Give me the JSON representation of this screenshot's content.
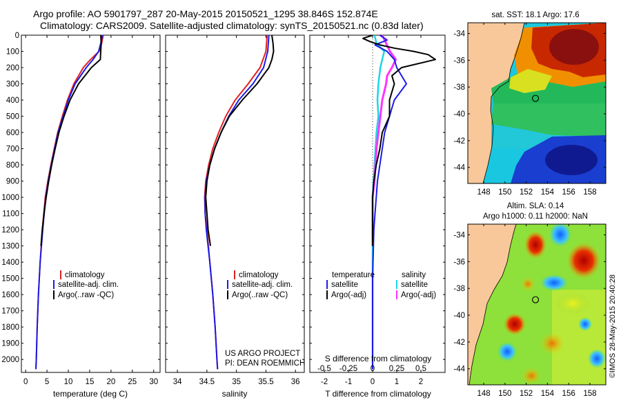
{
  "header": {
    "title_line1": "Argo profile: AO 5901797_287 20-May-2015 20150521_1295 38.846S 152.874E",
    "title_line2": "Climatology: CARS2009. Satellite-adjusted climatology: synTS_20150521.nc (0.83d later)"
  },
  "colors": {
    "climatology": "#e02020",
    "satellite": "#1a1ae6",
    "argo": "#000000",
    "satellite_diff": "#19d6e6",
    "argo_diff": "#ff33ff",
    "land": "#f8c89a"
  },
  "chart_data": [
    {
      "type": "line",
      "title": "",
      "xlabel": "temperature (deg C)",
      "ylabel": "",
      "xlim": [
        -1,
        31.5
      ],
      "ylim": [
        2080,
        0
      ],
      "xticks": [
        "0",
        "5",
        "10",
        "15",
        "20",
        "25",
        "30"
      ],
      "yticks": [
        "0",
        "100",
        "200",
        "300",
        "400",
        "500",
        "600",
        "700",
        "800",
        "900",
        "1000",
        "1100",
        "1200",
        "1300",
        "1400",
        "1500",
        "1600",
        "1700",
        "1800",
        "1900",
        "2000"
      ],
      "legend": [
        "climatology",
        "satellite-adj. clim.",
        "Argo(..raw -QC)"
      ],
      "series": [
        {
          "name": "climatology",
          "depth": [
            0,
            50,
            100,
            150,
            200,
            300,
            400,
            500,
            600,
            700,
            800,
            900,
            1000,
            1200,
            1400,
            1600,
            1800,
            2000,
            2060
          ],
          "values": [
            18.2,
            17.8,
            17.2,
            15.2,
            13.5,
            11.3,
            9.8,
            8.6,
            7.5,
            6.7,
            5.9,
            5.2,
            4.6,
            3.9,
            3.4,
            3.0,
            2.7,
            2.5,
            2.4
          ]
        },
        {
          "name": "satellite-adj. clim.",
          "depth": [
            0,
            50,
            100,
            150,
            200,
            300,
            400,
            500,
            600,
            700,
            800,
            900,
            1000,
            1200,
            1400,
            1600,
            1800,
            2000,
            2060
          ],
          "values": [
            18.0,
            17.6,
            17.1,
            15.8,
            14.2,
            11.6,
            10.0,
            8.8,
            7.6,
            6.8,
            6.0,
            5.3,
            4.7,
            4.0,
            3.4,
            3.0,
            2.7,
            2.5,
            2.4
          ]
        },
        {
          "name": "Argo(..raw -QC)",
          "depth": [
            0,
            50,
            100,
            150,
            200,
            300,
            400,
            500,
            600,
            700,
            800,
            900,
            1000,
            1100,
            1200,
            1300
          ],
          "values": [
            17.6,
            17.7,
            17.6,
            17.5,
            15.4,
            12.4,
            10.4,
            9.0,
            7.8,
            6.9,
            6.1,
            5.4,
            4.8,
            4.3,
            3.9,
            3.6
          ]
        }
      ]
    },
    {
      "type": "line",
      "title": "",
      "xlabel": "salinity",
      "ylabel": "",
      "xlim": [
        33.8,
        36.15
      ],
      "ylim": [
        2080,
        0
      ],
      "xticks": [
        "34",
        "34.5",
        "35",
        "35.5",
        "36"
      ],
      "legend": [
        "climatology",
        "satellite-adj. clim.",
        "Argo(..raw -QC)"
      ],
      "series": [
        {
          "name": "climatology",
          "depth": [
            0,
            100,
            200,
            300,
            400,
            500,
            600,
            700,
            800,
            900,
            1000,
            1100,
            1200,
            1400,
            1600,
            1800,
            2000,
            2060
          ],
          "values": [
            35.52,
            35.5,
            35.4,
            35.2,
            34.98,
            34.82,
            34.7,
            34.6,
            34.53,
            34.48,
            34.46,
            34.47,
            34.5,
            34.55,
            34.6,
            34.64,
            34.67,
            34.68
          ]
        },
        {
          "name": "satellite-adj. clim.",
          "depth": [
            0,
            100,
            200,
            300,
            400,
            500,
            600,
            700,
            800,
            900,
            1000,
            1100,
            1200,
            1400,
            1600,
            1800,
            2000,
            2060
          ],
          "values": [
            35.55,
            35.53,
            35.46,
            35.28,
            35.04,
            34.87,
            34.74,
            34.63,
            34.55,
            34.49,
            34.47,
            34.47,
            34.49,
            34.55,
            34.6,
            34.64,
            34.67,
            34.68
          ]
        },
        {
          "name": "Argo(..raw -QC)",
          "depth": [
            0,
            50,
            100,
            150,
            200,
            300,
            400,
            500,
            600,
            700,
            800,
            900,
            1000,
            1100,
            1200,
            1300
          ],
          "values": [
            35.6,
            35.62,
            35.63,
            35.6,
            35.55,
            35.35,
            35.1,
            34.88,
            34.74,
            34.63,
            34.55,
            34.5,
            34.48,
            34.5,
            34.52,
            34.56
          ]
        }
      ]
    },
    {
      "type": "line",
      "title": "",
      "xlabel": "T difference from climatology",
      "xlabel2": "S difference from climatology",
      "ylabel": "",
      "xlim": [
        -2.6,
        3.0
      ],
      "ylim": [
        2080,
        0
      ],
      "xticks": [
        "-2",
        "-1",
        "0",
        "1",
        "2"
      ],
      "xticks_top": [
        "-0.5",
        "-0.25",
        "0",
        "0.25",
        "0.5"
      ],
      "legend_headers": [
        "temperature",
        "salinity"
      ],
      "legend": [
        "satellite",
        "Argo(-adj)",
        "satellite",
        "Argo(-adj)"
      ],
      "series": [
        {
          "name": "temperature satellite",
          "depth": [
            0,
            30,
            60,
            100,
            150,
            200,
            300,
            400,
            500,
            600,
            700,
            800,
            900,
            1000,
            1100,
            1200,
            1500,
            2060
          ],
          "values": [
            0.3,
            0.6,
            0.1,
            0.6,
            0.9,
            1.0,
            1.4,
            0.9,
            0.7,
            0.5,
            0.4,
            0.3,
            0.2,
            0.15,
            0.1,
            0.05,
            0.0,
            0.0
          ]
        },
        {
          "name": "temperature Argo(-adj)",
          "depth": [
            0,
            20,
            40,
            60,
            80,
            100,
            120,
            150,
            200,
            250,
            300,
            400,
            500,
            600,
            700,
            800,
            900,
            1000,
            1100,
            1200,
            1300
          ],
          "values": [
            0.0,
            -0.4,
            -0.1,
            0.3,
            0.9,
            1.7,
            2.3,
            2.6,
            1.2,
            0.8,
            0.9,
            0.7,
            0.7,
            0.4,
            0.3,
            0.15,
            0.05,
            0.0,
            0.0,
            0.0,
            0.0
          ]
        },
        {
          "name": "salinity satellite",
          "depth": [
            0,
            50,
            100,
            200,
            300,
            400,
            500,
            600,
            700,
            800,
            900,
            1000,
            1500,
            2060
          ],
          "values": [
            0.02,
            0.04,
            0.12,
            0.08,
            0.06,
            0.05,
            0.06,
            0.04,
            0.03,
            0.02,
            0.01,
            0.0,
            0.0,
            0.0
          ]
        },
        {
          "name": "salinity Argo(-adj)",
          "depth": [
            0,
            100,
            150,
            200,
            250,
            300,
            400,
            500,
            600,
            700,
            800,
            900,
            1000,
            1100,
            1200,
            1300
          ],
          "values": [
            0.1,
            0.18,
            0.24,
            0.2,
            0.15,
            0.14,
            0.1,
            0.08,
            0.06,
            0.04,
            0.03,
            0.02,
            0.0,
            0.0,
            0.0,
            0.0
          ]
        }
      ]
    },
    {
      "type": "heatmap",
      "title": "sat. SST: 18.1  Argo: 17.6",
      "xlabel": "",
      "ylabel": "",
      "xticks": [
        "148",
        "150",
        "152",
        "154",
        "156",
        "158"
      ],
      "yticks": [
        "-34",
        "-36",
        "-38",
        "-40",
        "-42",
        "-44"
      ],
      "xlim": [
        146.5,
        159.5
      ],
      "ylim": [
        -45.2,
        -33.2
      ],
      "marker": {
        "lon": 152.874,
        "lat": -38.846
      }
    },
    {
      "type": "heatmap",
      "title_line1": "Altim. SLA: 0.14",
      "title_line2": "Argo h1000: 0.11 h2000: NaN",
      "xlabel": "",
      "ylabel": "",
      "xticks": [
        "148",
        "150",
        "152",
        "154",
        "156",
        "158"
      ],
      "yticks": [
        "-34",
        "-36",
        "-38",
        "-40",
        "-42",
        "-44"
      ],
      "xlim": [
        146.5,
        159.5
      ],
      "ylim": [
        -45.2,
        -33.2
      ],
      "marker": {
        "lon": 152.874,
        "lat": -38.846
      }
    }
  ],
  "notes": {
    "project": "US ARGO PROJECT",
    "pi": "PI: DEAN ROEMMICH",
    "side_credit": "©IMOS 28-May-2015 20:40:28"
  }
}
